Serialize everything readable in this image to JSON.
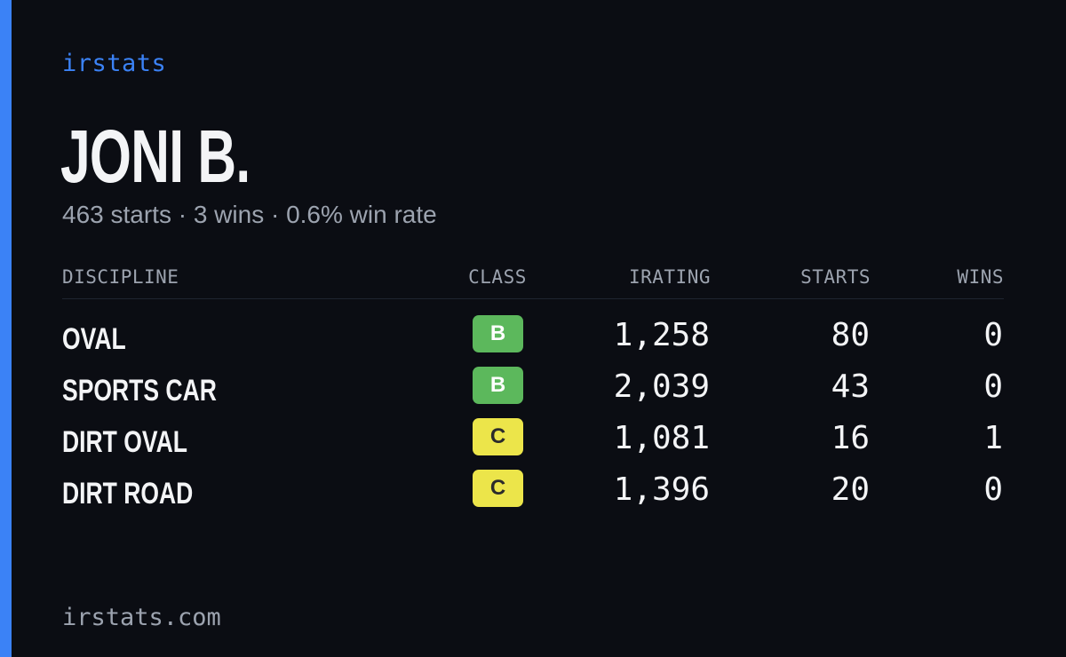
{
  "brand": "irstats",
  "player": {
    "name": "JONI B.",
    "summary": "463 starts · 3 wins · 0.6% win rate"
  },
  "table": {
    "headers": {
      "discipline": "DISCIPLINE",
      "class": "CLASS",
      "irating": "IRATING",
      "starts": "STARTS",
      "wins": "WINS"
    },
    "rows": [
      {
        "discipline": "OVAL",
        "class": "B",
        "class_color": "#5cb85c",
        "class_text_color": "#ffffff",
        "irating": "1,258",
        "starts": "80",
        "wins": "0"
      },
      {
        "discipline": "SPORTS CAR",
        "class": "B",
        "class_color": "#5cb85c",
        "class_text_color": "#ffffff",
        "irating": "2,039",
        "starts": "43",
        "wins": "0"
      },
      {
        "discipline": "DIRT OVAL",
        "class": "C",
        "class_color": "#ece54a",
        "class_text_color": "#2b2b2b",
        "irating": "1,081",
        "starts": "16",
        "wins": "1"
      },
      {
        "discipline": "DIRT ROAD",
        "class": "C",
        "class_color": "#ece54a",
        "class_text_color": "#2b2b2b",
        "irating": "1,396",
        "starts": "20",
        "wins": "0"
      }
    ]
  },
  "footer": {
    "url": "irstats.com"
  },
  "colors": {
    "accent": "#3b82f6",
    "background": "#0b0d13",
    "text_primary": "#f3f4f6",
    "text_muted": "#9ca3af"
  }
}
